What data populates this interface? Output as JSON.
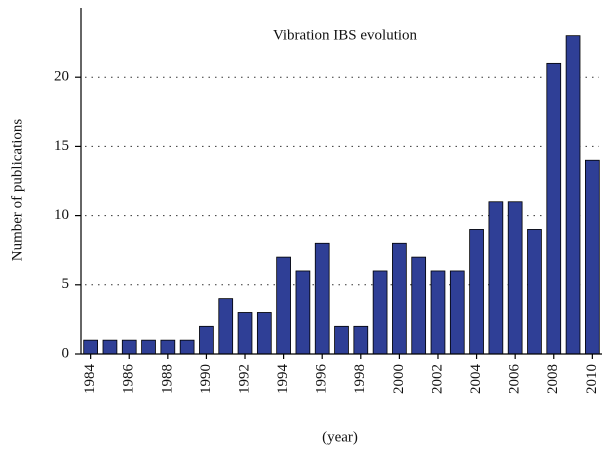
{
  "chart_data": {
    "type": "bar",
    "title": "Vibration IBS evolution",
    "x_label": "(year)",
    "y_label": "Number of publications",
    "categories": [
      "1984",
      null,
      "1986",
      null,
      "1988",
      null,
      "1990",
      null,
      "1992",
      null,
      "1994",
      null,
      "1996",
      null,
      "1998",
      null,
      "2000",
      null,
      "2002",
      null,
      "2004",
      null,
      "2006",
      null,
      "2008",
      null,
      "2010"
    ],
    "values": [
      1,
      1,
      1,
      1,
      1,
      1,
      2,
      4,
      3,
      3,
      7,
      6,
      8,
      2,
      2,
      6,
      8,
      7,
      6,
      6,
      9,
      11,
      11,
      9,
      21,
      23,
      14
    ],
    "color": "#2f3f96",
    "ylim": [
      0,
      25
    ],
    "yticks": [
      0,
      5,
      10,
      15,
      20
    ],
    "grid": true
  }
}
